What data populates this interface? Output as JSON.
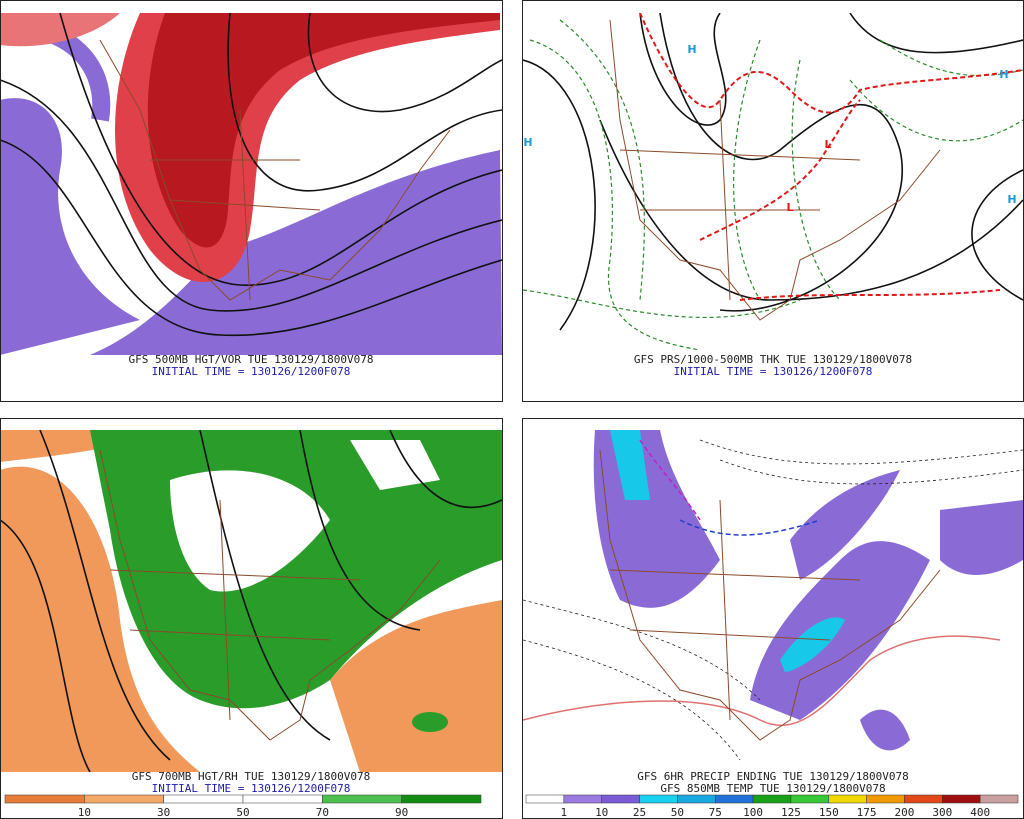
{
  "panels": [
    {
      "caption": "GFS 500MB HGT/VOR TUE 130129/1800V078",
      "subcaption": "INITIAL TIME = 130126/1200F078"
    },
    {
      "caption": "GFS PRS/1000-500MB THK TUE 130129/1800V078",
      "subcaption": "INITIAL TIME = 130126/1200F078",
      "symbols": [
        "H",
        "H",
        "H",
        "H",
        "L",
        "L"
      ]
    },
    {
      "caption": "GFS 700MB HGT/RH TUE 130129/1800V078",
      "subcaption": "INITIAL TIME = 130126/1200F078",
      "colorbar": {
        "labels": [
          10,
          30,
          50,
          70,
          90
        ],
        "colors": [
          "#e87d3a",
          "#f4a868",
          "#ffffff",
          "#ffffff",
          "#4cbf4c",
          "#148c14"
        ]
      }
    },
    {
      "caption": "GFS 6HR PRECIP ENDING TUE 130129/1800V078",
      "subcaption": "GFS 850MB TEMP TUE 130129/1800V078",
      "colorbar": {
        "labels": [
          1,
          10,
          25,
          50,
          75,
          100,
          125,
          150,
          175,
          200,
          300,
          400
        ],
        "colors": [
          "#ffffff",
          "#9a7be0",
          "#7b5cd6",
          "#18d0f0",
          "#18a8e0",
          "#2070d8",
          "#18a018",
          "#38c838",
          "#f0d800",
          "#f09a00",
          "#e04818",
          "#a01010",
          "#c8a0a0"
        ]
      }
    }
  ]
}
